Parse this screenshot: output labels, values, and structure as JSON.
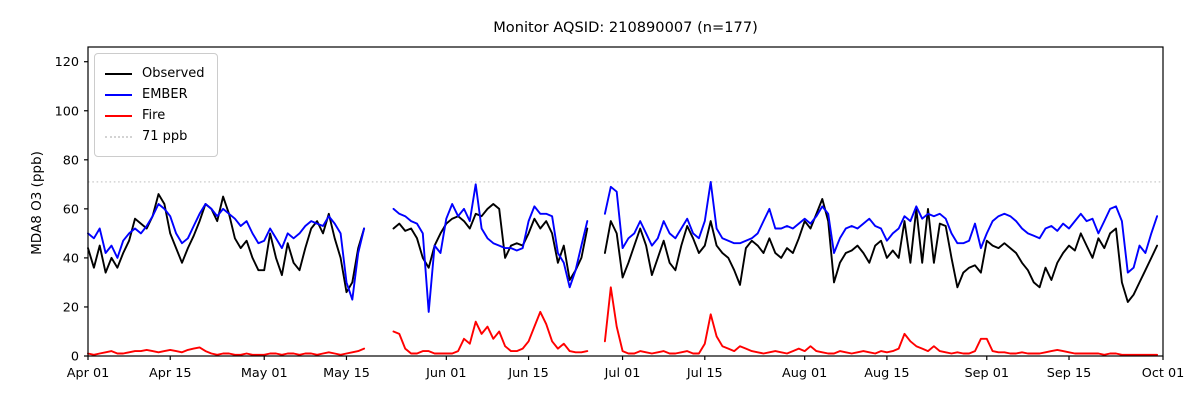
{
  "chart_data": {
    "type": "line",
    "title": "Monitor AQSID: 210890007 (n=177)",
    "ylabel": "MDA8 O3 (ppb)",
    "xlabel": "",
    "ylim": [
      0,
      126
    ],
    "y_ticks": [
      0,
      20,
      40,
      60,
      80,
      100,
      120
    ],
    "days_total": 183,
    "x_ticks": [
      {
        "day": 0,
        "label": "Apr 01"
      },
      {
        "day": 14,
        "label": "Apr 15"
      },
      {
        "day": 30,
        "label": "May 01"
      },
      {
        "day": 44,
        "label": "May 15"
      },
      {
        "day": 61,
        "label": "Jun 01"
      },
      {
        "day": 75,
        "label": "Jun 15"
      },
      {
        "day": 91,
        "label": "Jul 01"
      },
      {
        "day": 105,
        "label": "Jul 15"
      },
      {
        "day": 122,
        "label": "Aug 01"
      },
      {
        "day": 136,
        "label": "Aug 15"
      },
      {
        "day": 153,
        "label": "Sep 01"
      },
      {
        "day": 167,
        "label": "Sep 15"
      },
      {
        "day": 183,
        "label": "Oct 01"
      }
    ],
    "threshold": {
      "value": 71,
      "label": "71 ppb",
      "color": "#d3d3d3",
      "style": "dotted"
    },
    "legend_position": "upper left",
    "grid": false,
    "series": [
      {
        "name": "Observed",
        "color": "#000000",
        "values": [
          44,
          36,
          45,
          34,
          40,
          36,
          42,
          47,
          56,
          54,
          52,
          57,
          66,
          62,
          50,
          44,
          38,
          44,
          49,
          55,
          62,
          60,
          55,
          65,
          58,
          48,
          44,
          47,
          40,
          35,
          35,
          50,
          40,
          33,
          46,
          38,
          35,
          44,
          52,
          55,
          50,
          58,
          48,
          40,
          26,
          30,
          44,
          52,
          null,
          null,
          null,
          null,
          52,
          54,
          51,
          52,
          48,
          40,
          36,
          45,
          50,
          54,
          56,
          57,
          55,
          52,
          58,
          57,
          60,
          62,
          60,
          40,
          45,
          46,
          45,
          50,
          56,
          52,
          55,
          50,
          38,
          45,
          31,
          35,
          40,
          52,
          null,
          null,
          42,
          55,
          50,
          32,
          38,
          45,
          52,
          45,
          33,
          40,
          47,
          38,
          35,
          45,
          53,
          48,
          42,
          45,
          55,
          45,
          42,
          40,
          35,
          29,
          44,
          47,
          45,
          42,
          48,
          42,
          40,
          44,
          42,
          48,
          55,
          52,
          58,
          64,
          55,
          30,
          38,
          42,
          43,
          45,
          42,
          38,
          45,
          47,
          40,
          43,
          40,
          55,
          38,
          60,
          38,
          60,
          38,
          54,
          53,
          40,
          28,
          34,
          36,
          37,
          34,
          47,
          45,
          44,
          46,
          44,
          42,
          38,
          35,
          30,
          28,
          36,
          31,
          38,
          42,
          45,
          43,
          50,
          45,
          40,
          48,
          44,
          50,
          52,
          30,
          22,
          25,
          30,
          35,
          40,
          45
        ]
      },
      {
        "name": "EMBER",
        "color": "#0000ff",
        "values": [
          50,
          48,
          52,
          42,
          45,
          40,
          47,
          50,
          52,
          50,
          53,
          57,
          62,
          60,
          57,
          50,
          46,
          48,
          53,
          58,
          62,
          60,
          57,
          60,
          58,
          56,
          53,
          55,
          50,
          46,
          47,
          52,
          48,
          44,
          50,
          48,
          50,
          53,
          55,
          54,
          53,
          57,
          54,
          50,
          30,
          23,
          42,
          52,
          null,
          null,
          null,
          null,
          60,
          58,
          57,
          55,
          54,
          50,
          18,
          45,
          42,
          56,
          62,
          57,
          60,
          55,
          70,
          52,
          48,
          46,
          45,
          44,
          44,
          43,
          44,
          55,
          61,
          58,
          58,
          57,
          42,
          38,
          28,
          35,
          45,
          55,
          null,
          null,
          58,
          69,
          67,
          44,
          48,
          50,
          55,
          50,
          45,
          48,
          55,
          50,
          48,
          52,
          56,
          50,
          48,
          55,
          71,
          52,
          48,
          47,
          46,
          46,
          47,
          48,
          50,
          55,
          60,
          52,
          52,
          53,
          52,
          54,
          56,
          54,
          57,
          61,
          58,
          42,
          48,
          52,
          53,
          52,
          54,
          56,
          53,
          52,
          47,
          50,
          52,
          57,
          55,
          61,
          56,
          58,
          57,
          58,
          56,
          50,
          46,
          46,
          47,
          54,
          44,
          50,
          55,
          57,
          58,
          57,
          55,
          52,
          50,
          49,
          48,
          52,
          53,
          51,
          54,
          52,
          55,
          58,
          55,
          56,
          50,
          55,
          60,
          61,
          55,
          34,
          36,
          45,
          42,
          50,
          57
        ]
      },
      {
        "name": "Fire",
        "color": "#ff0000",
        "values": [
          1,
          0.5,
          1,
          1.5,
          2,
          1,
          1,
          1.5,
          2,
          2,
          2.5,
          2,
          1.5,
          2,
          2.5,
          2,
          1.5,
          2.5,
          3,
          3.5,
          2,
          1,
          0.5,
          1,
          1,
          0.5,
          0.5,
          1,
          0.5,
          0.5,
          0.5,
          1,
          1,
          0.5,
          1,
          1,
          0.5,
          1,
          1,
          0.5,
          1,
          1.5,
          1,
          0.5,
          1,
          1.5,
          2,
          3,
          null,
          null,
          null,
          null,
          10,
          9,
          3,
          1,
          1,
          2,
          2,
          1,
          1,
          1,
          1,
          2,
          7,
          5,
          14,
          9,
          12,
          7,
          10,
          4,
          2,
          2,
          3,
          6,
          12,
          18,
          13,
          6,
          3,
          5,
          2,
          1.5,
          1.5,
          2,
          null,
          null,
          6,
          28,
          12,
          2,
          1,
          1,
          2,
          1.5,
          1,
          1.5,
          2,
          1,
          1,
          1.5,
          2,
          1,
          1,
          5,
          17,
          8,
          4,
          3,
          2,
          4,
          3,
          2,
          1.5,
          1,
          1.5,
          2,
          1.5,
          1,
          2,
          3,
          2,
          4,
          2,
          1.5,
          1,
          1,
          2,
          1.5,
          1,
          1.5,
          2,
          1.5,
          1,
          2,
          1.5,
          2,
          3,
          9,
          6,
          4,
          3,
          2,
          4,
          2,
          1.5,
          1,
          1.5,
          1,
          1,
          2,
          7,
          7,
          2,
          1.5,
          1.5,
          1,
          1,
          1.5,
          1,
          1,
          1,
          1.5,
          2,
          2.5,
          2,
          1.5,
          1,
          1,
          1,
          1,
          1,
          0.5,
          1,
          1,
          0.5,
          0.5,
          0.5,
          0.5,
          0.5,
          0.5,
          0.5
        ]
      }
    ]
  }
}
